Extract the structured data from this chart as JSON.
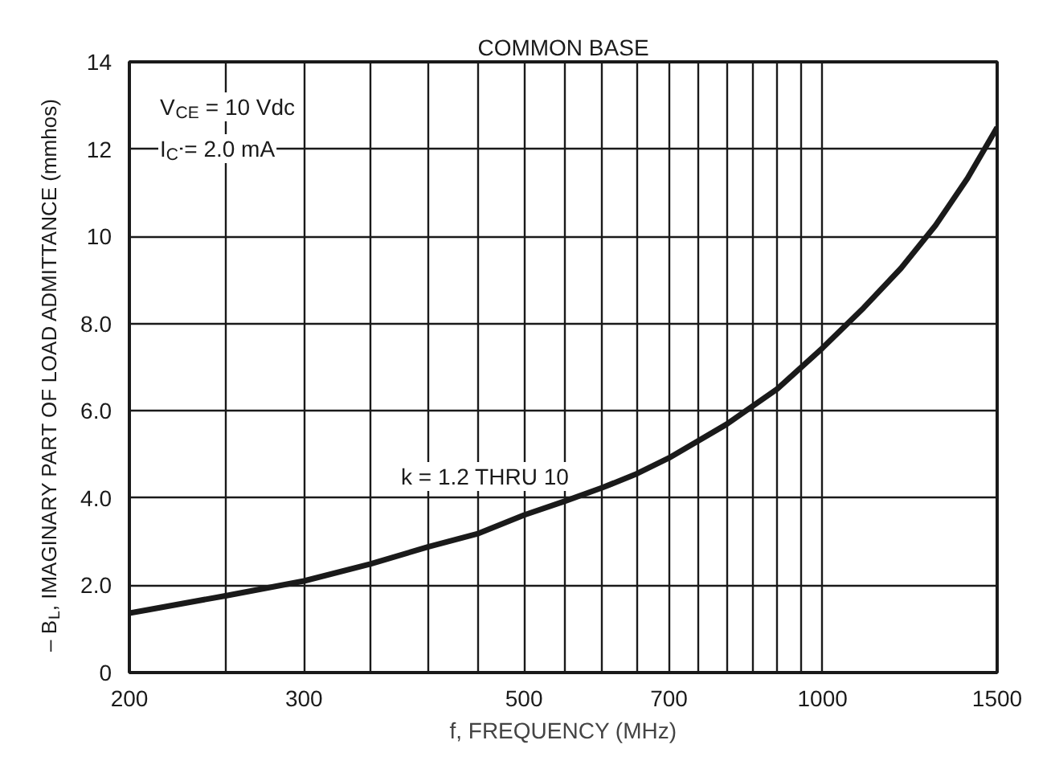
{
  "chart_data": {
    "type": "line",
    "title": "COMMON BASE",
    "xlabel": "f, FREQUENCY (MHz)",
    "ylabel": "– B$_{L}$, IMAGINARY PART OF LOAD ADMITTANCE (mmhos)",
    "annotations": [
      "V$_{CE}$ = 10 Vdc",
      "I$_{C}$ = 2.0 mA",
      "k = 1.2 THRU 10"
    ],
    "log": "x",
    "x": [
      200,
      250,
      300,
      350,
      400,
      450,
      500,
      550,
      600,
      650,
      700,
      800,
      900,
      1000,
      1100,
      1200,
      1300,
      1400,
      1500
    ],
    "series": [
      {
        "color": "#1a1a1a",
        "values": [
          1.36,
          1.76,
          2.1,
          2.49,
          2.88,
          3.19,
          3.61,
          3.93,
          4.24,
          4.56,
          4.92,
          5.69,
          6.5,
          7.44,
          8.36,
          9.27,
          10.25,
          11.33,
          12.5
        ]
      }
    ],
    "xlim": [
      200,
      1500
    ],
    "ylim": [
      0,
      14
    ],
    "xticks": [
      200,
      {
        "value": 250,
        "label": null
      },
      300,
      {
        "value": 350,
        "label": null
      },
      {
        "value": 400,
        "label": null
      },
      {
        "value": 450,
        "label": null
      },
      500,
      {
        "value": 550,
        "label": null
      },
      {
        "value": 600,
        "label": null
      },
      {
        "value": 650,
        "label": null
      },
      700,
      {
        "value": 750,
        "label": null
      },
      {
        "value": 800,
        "label": null
      },
      {
        "value": 850,
        "label": null
      },
      {
        "value": 900,
        "label": null
      },
      {
        "value": 950,
        "label": null
      },
      1000,
      1500
    ],
    "yticks": [
      0,
      {
        "value": 2,
        "label": "2.0"
      },
      {
        "value": 4,
        "label": "4.0"
      },
      {
        "value": 6,
        "label": "6.0"
      },
      {
        "value": 8,
        "label": "8.0"
      },
      10,
      12,
      14
    ],
    "grid": true,
    "marker": "none",
    "line_style": "solid"
  }
}
